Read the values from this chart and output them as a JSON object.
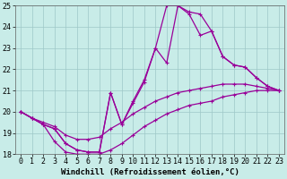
{
  "xlabel": "Windchill (Refroidissement éolien,°C)",
  "background_color": "#c8ece8",
  "grid_color": "#9ec8c8",
  "line_color": "#990099",
  "line1": [
    20.0,
    19.7,
    19.4,
    19.2,
    18.5,
    18.2,
    18.1,
    18.1,
    20.9,
    19.4,
    20.5,
    21.5,
    23.0,
    25.0,
    25.0,
    24.6,
    23.6,
    23.8,
    22.6,
    22.2,
    22.1,
    21.6,
    21.2,
    21.0
  ],
  "line2": [
    20.0,
    19.7,
    19.4,
    19.2,
    18.5,
    18.2,
    18.1,
    18.1,
    20.9,
    19.4,
    20.4,
    21.4,
    23.0,
    22.3,
    25.0,
    24.7,
    24.6,
    23.8,
    22.6,
    22.2,
    22.1,
    21.6,
    21.2,
    21.0
  ],
  "line3": [
    20.0,
    19.7,
    19.5,
    19.3,
    18.9,
    18.7,
    18.7,
    18.8,
    19.2,
    19.5,
    19.9,
    20.2,
    20.5,
    20.7,
    20.9,
    21.0,
    21.1,
    21.2,
    21.3,
    21.3,
    21.3,
    21.2,
    21.1,
    21.0
  ],
  "line4": [
    20.0,
    19.7,
    19.4,
    18.6,
    18.1,
    18.0,
    18.0,
    18.0,
    18.2,
    18.5,
    18.9,
    19.3,
    19.6,
    19.9,
    20.1,
    20.3,
    20.4,
    20.5,
    20.7,
    20.8,
    20.9,
    21.0,
    21.0,
    21.0
  ],
  "xticks": [
    0,
    1,
    2,
    3,
    4,
    5,
    6,
    7,
    8,
    9,
    10,
    11,
    12,
    13,
    14,
    15,
    16,
    17,
    18,
    19,
    20,
    21,
    22,
    23
  ],
  "yticks": [
    18,
    19,
    20,
    21,
    22,
    23,
    24,
    25
  ],
  "xlim": [
    -0.5,
    23.5
  ],
  "ylim": [
    18,
    25
  ],
  "tick_fontsize": 6,
  "xlabel_fontsize": 6.5
}
